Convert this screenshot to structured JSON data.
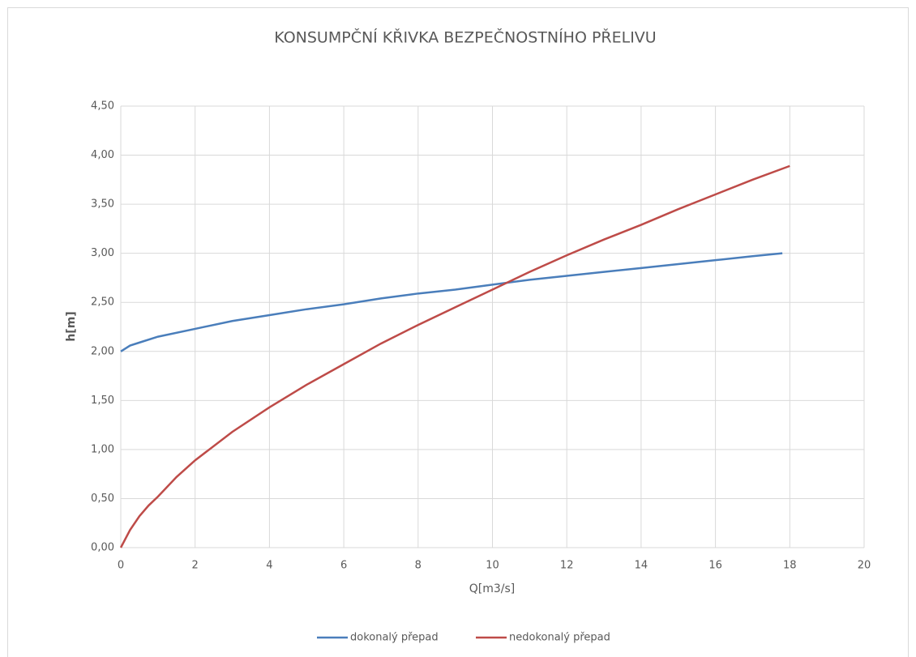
{
  "chart_data": {
    "type": "line",
    "title": "KONSUMPČNÍ KŘIVKA BEZPEČNOSTNÍHO PŘELIVU",
    "xlabel": "Q[m3/s]",
    "ylabel": "h[m]",
    "xlim": [
      0,
      20
    ],
    "xticks": [
      0,
      2,
      4,
      6,
      8,
      10,
      12,
      14,
      16,
      18,
      20
    ],
    "ylim": [
      0,
      4.5
    ],
    "yticks": [
      {
        "value": 0,
        "label": "0,00"
      },
      {
        "value": 0.5,
        "label": "0,50"
      },
      {
        "value": 1,
        "label": "1,00"
      },
      {
        "value": 1.5,
        "label": "1,50"
      },
      {
        "value": 2,
        "label": "2,00"
      },
      {
        "value": 2.5,
        "label": "2,50"
      },
      {
        "value": 3,
        "label": "3,00"
      },
      {
        "value": 3.5,
        "label": "3,50"
      },
      {
        "value": 4,
        "label": "4,00"
      },
      {
        "value": 4.5,
        "label": "4,50"
      }
    ],
    "grid": true,
    "legend": "bottom",
    "series": [
      {
        "name": "dokonalý přepad",
        "color": "#4a7ebb",
        "x": [
          0,
          0.25,
          0.5,
          1,
          2,
          3,
          4,
          5,
          6,
          7,
          8,
          9,
          10,
          11,
          12,
          13,
          14,
          15,
          16,
          17,
          17.8
        ],
        "values": [
          2.0,
          2.06,
          2.09,
          2.15,
          2.23,
          2.31,
          2.37,
          2.43,
          2.48,
          2.54,
          2.59,
          2.63,
          2.68,
          2.73,
          2.77,
          2.81,
          2.85,
          2.89,
          2.93,
          2.97,
          3.0
        ]
      },
      {
        "name": "nedokonalý přepad",
        "color": "#be4b48",
        "x": [
          0,
          0.25,
          0.5,
          0.75,
          1,
          1.5,
          2,
          3,
          4,
          5,
          6,
          7,
          8,
          9,
          10,
          11,
          12,
          13,
          14,
          15,
          16,
          17,
          18
        ],
        "values": [
          0,
          0.18,
          0.32,
          0.43,
          0.52,
          0.72,
          0.89,
          1.18,
          1.43,
          1.66,
          1.87,
          2.08,
          2.27,
          2.45,
          2.63,
          2.81,
          2.98,
          3.14,
          3.29,
          3.45,
          3.6,
          3.75,
          3.89
        ]
      }
    ]
  }
}
